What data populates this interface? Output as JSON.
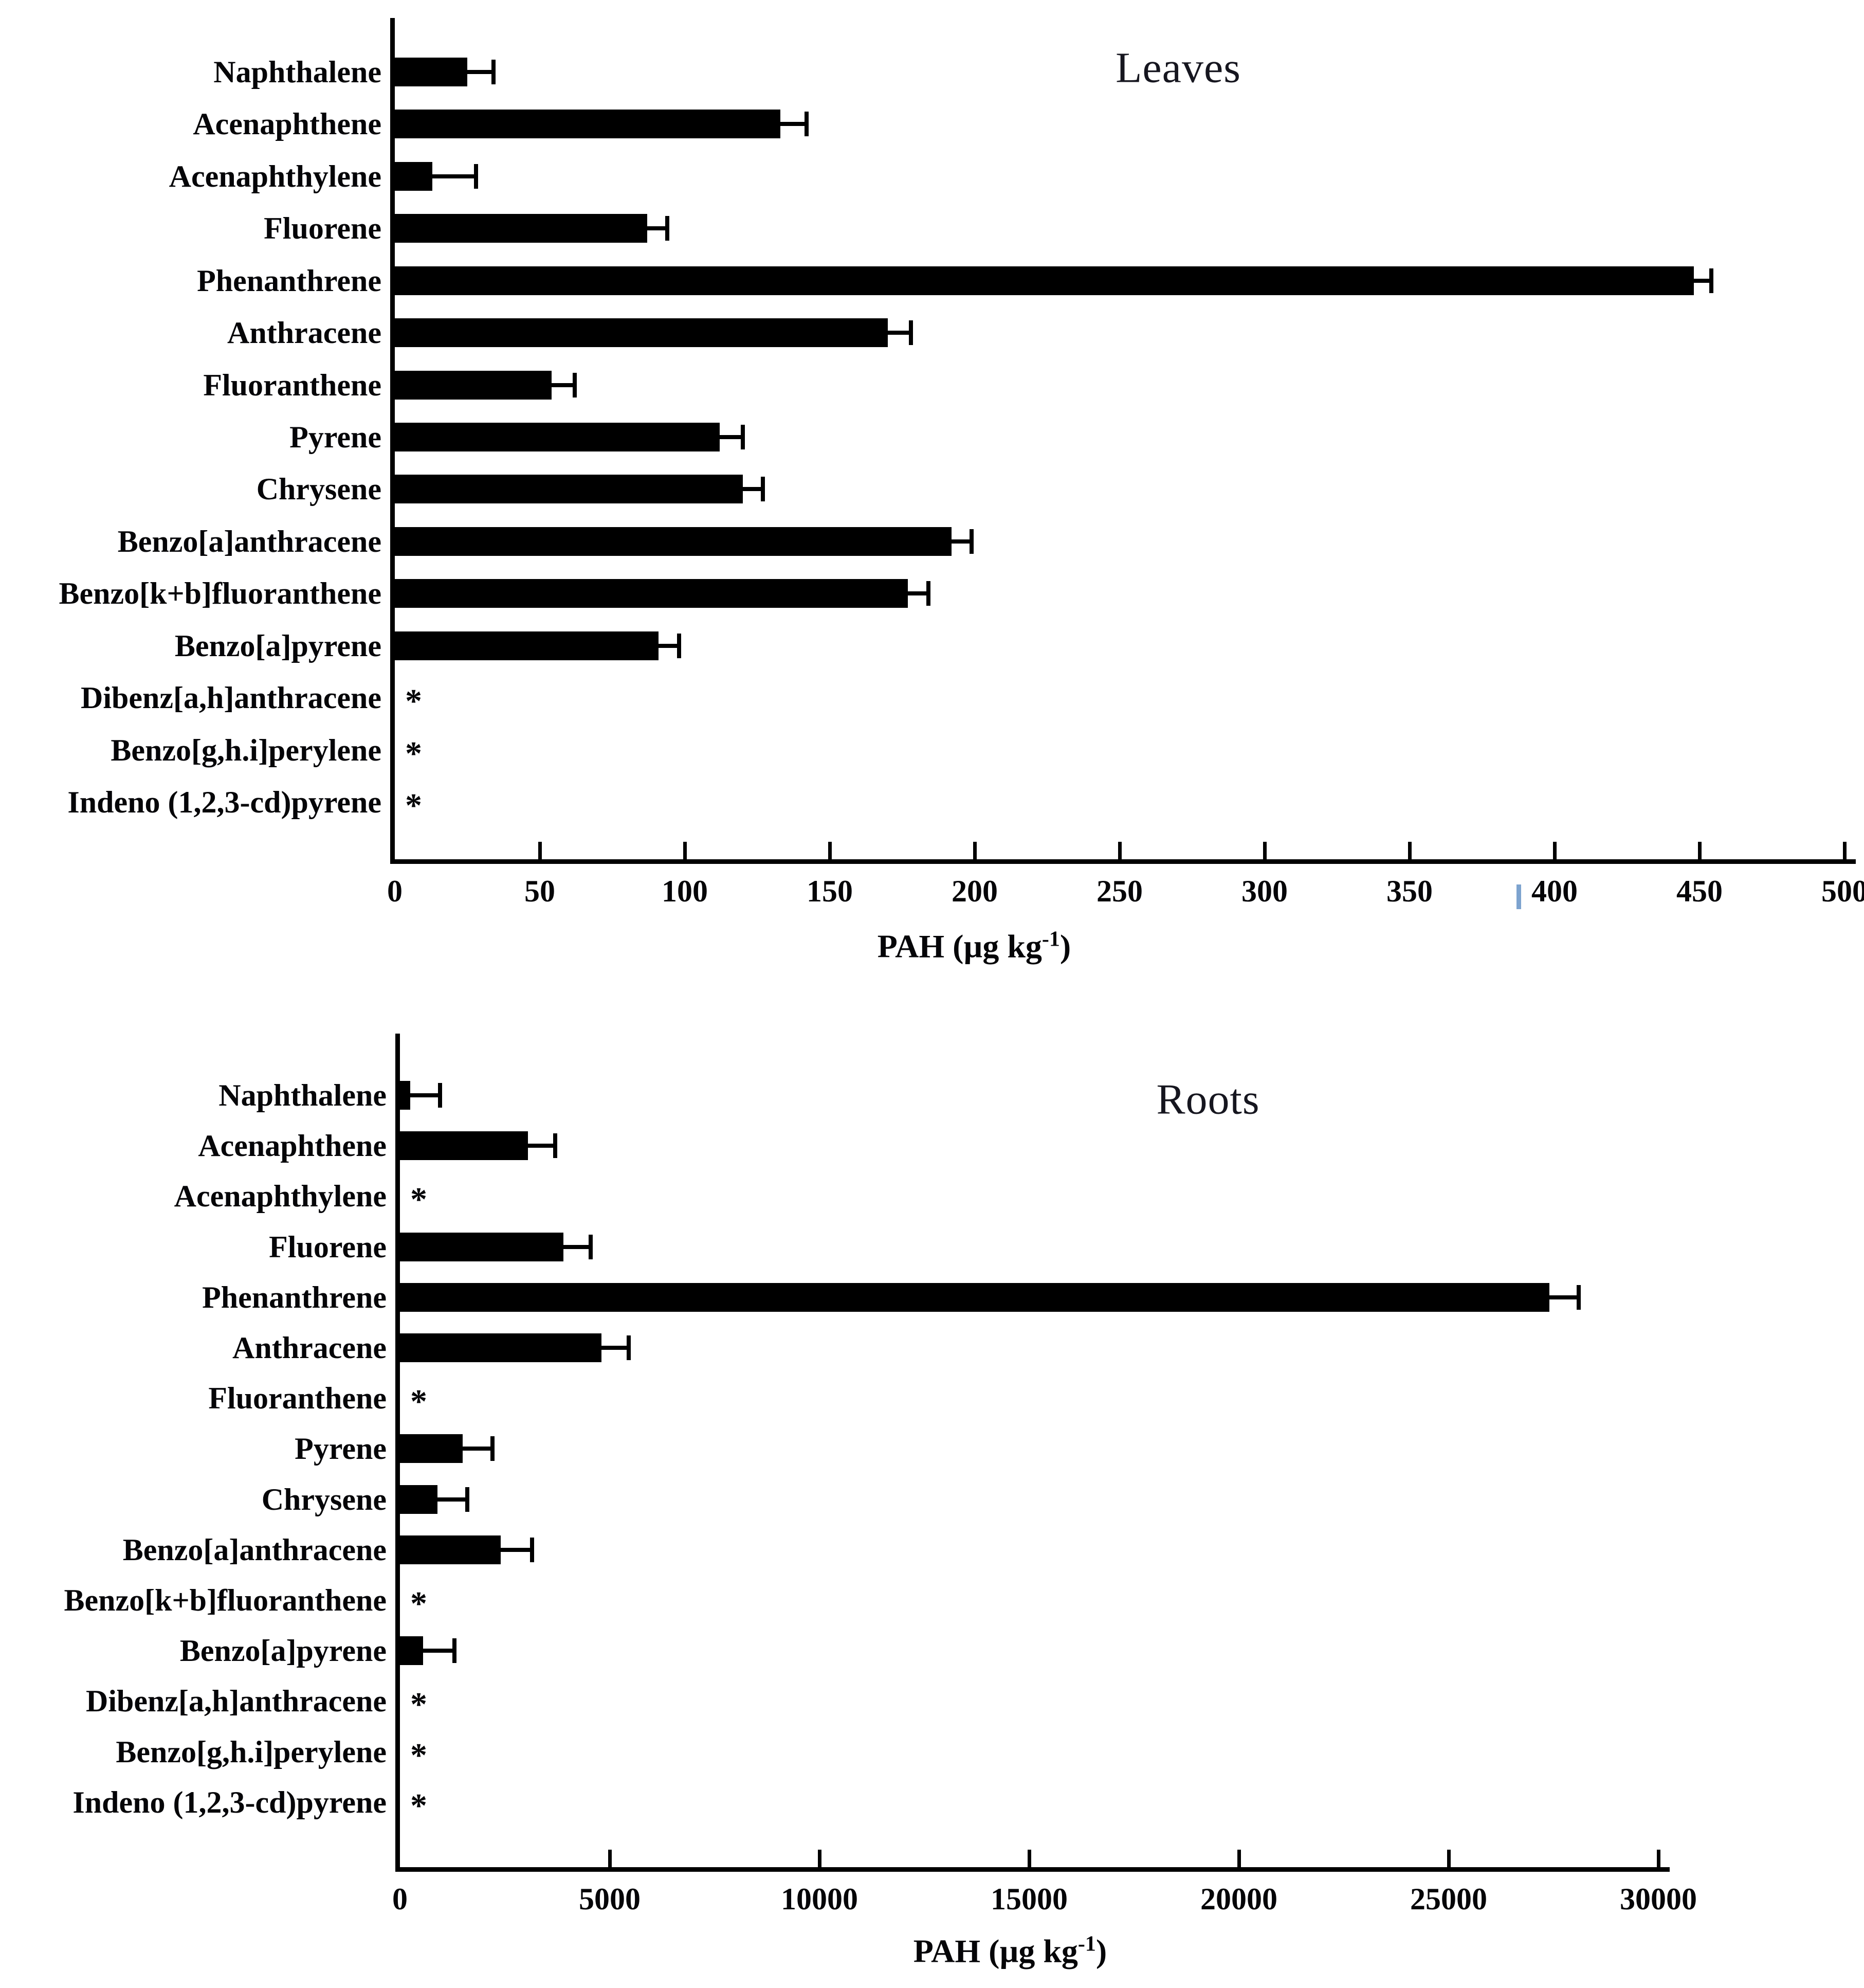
{
  "chart_data": [
    {
      "type": "bar",
      "orientation": "horizontal",
      "title": "Leaves",
      "xlabel": "PAH (µg kg-1)",
      "xlabel_prefix": "PAH (µg kg",
      "xlabel_sup": "-1",
      "xlabel_suffix": ")",
      "xlim": [
        0,
        500
      ],
      "xticks": [
        0,
        50,
        100,
        150,
        200,
        250,
        300,
        350,
        400,
        450,
        500
      ],
      "grid": false,
      "legend": "none",
      "bar_color": "#000000",
      "missing_marker": "*",
      "categories": [
        "Naphthalene",
        "Acenaphthene",
        "Acenaphthylene",
        "Fluorene",
        "Phenanthrene",
        "Anthracene",
        "Fluoranthene",
        "Pyrene",
        "Chrysene",
        "Benzo[a]anthracene",
        "Benzo[k+b]fluoranthene",
        "Benzo[a]pyrene",
        "Dibenz[a,h]anthracene",
        "Benzo[g,h.i]perylene",
        "Indeno (1,2,3-cd)pyrene"
      ],
      "values": [
        25,
        133,
        13,
        87,
        448,
        170,
        54,
        112,
        120,
        192,
        177,
        91,
        null,
        null,
        null
      ],
      "errors": [
        9,
        9,
        15,
        7,
        6,
        8,
        8,
        8,
        7,
        7,
        7,
        7,
        null,
        null,
        null
      ]
    },
    {
      "type": "bar",
      "orientation": "horizontal",
      "title": "Roots",
      "xlabel": "PAH (µg kg-1)",
      "xlabel_prefix": "PAH (µg kg",
      "xlabel_sup": "-1",
      "xlabel_suffix": ")",
      "xlim": [
        0,
        30000
      ],
      "xticks": [
        0,
        5000,
        10000,
        15000,
        20000,
        25000,
        30000
      ],
      "grid": false,
      "legend": "none",
      "bar_color": "#000000",
      "missing_marker": "*",
      "categories": [
        "Naphthalene",
        "Acenaphthene",
        "Acenaphthylene",
        "Fluorene",
        "Phenanthrene",
        "Anthracene",
        "Fluoranthene",
        "Pyrene",
        "Chrysene",
        "Benzo[a]anthracene",
        "Benzo[k+b]fluoranthene",
        "Benzo[a]pyrene",
        "Dibenz[a,h]anthracene",
        "Benzo[g,h.i]perylene",
        "Indeno (1,2,3-cd)pyrene"
      ],
      "values": [
        250,
        3050,
        null,
        3900,
        27400,
        4800,
        null,
        1500,
        900,
        2400,
        null,
        550,
        null,
        null,
        null
      ],
      "errors": [
        700,
        650,
        null,
        650,
        700,
        650,
        null,
        700,
        700,
        750,
        null,
        750,
        null,
        null,
        null
      ]
    }
  ],
  "artifact": {
    "blue_dash_color": "#7da3cf"
  }
}
